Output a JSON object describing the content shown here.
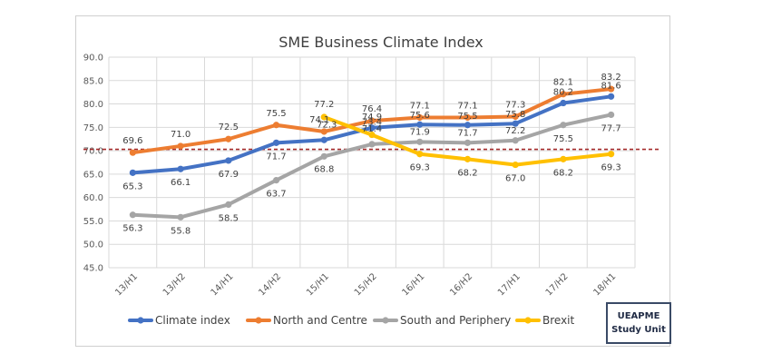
{
  "chart_data": {
    "type": "line",
    "title": "SME Business Climate Index",
    "categories": [
      "13/H1",
      "13/H2",
      "14/H1",
      "14/H2",
      "15/H1",
      "15/H2",
      "16/H1",
      "16/H2",
      "17/H1",
      "17/H2",
      "18/H1"
    ],
    "ylim": [
      45.0,
      90.0
    ],
    "yticks": [
      "45.0",
      "50.0",
      "55.0",
      "60.0",
      "65.0",
      "70.0",
      "75.0",
      "80.0",
      "85.0",
      "90.0"
    ],
    "grid": true,
    "legend_position": "bottom",
    "reference_line": {
      "value": 70.3,
      "color": "#a52a2a",
      "style": "dashed"
    },
    "series": [
      {
        "name": "Climate index",
        "color": "#4472C4",
        "values": [
          65.3,
          66.1,
          67.9,
          71.7,
          72.3,
          74.9,
          75.6,
          75.5,
          75.8,
          80.2,
          81.6
        ]
      },
      {
        "name": "North and Centre",
        "color": "#ED7D31",
        "values": [
          69.6,
          71.0,
          72.5,
          75.5,
          74.1,
          76.4,
          77.1,
          77.1,
          77.3,
          82.1,
          83.2
        ]
      },
      {
        "name": "South and Periphery",
        "color": "#A5A5A5",
        "values": [
          56.3,
          55.8,
          58.5,
          63.7,
          68.8,
          71.4,
          71.9,
          71.7,
          72.2,
          75.5,
          77.7
        ]
      },
      {
        "name": "Brexit",
        "color": "#FFC000",
        "values": [
          null,
          null,
          null,
          null,
          77.2,
          73.4,
          69.3,
          68.2,
          67.0,
          68.2,
          69.3
        ]
      }
    ],
    "data_labels": [
      [
        "65.3",
        "66.1",
        "67.9",
        "71.7",
        "72.3",
        "74.9",
        "75.6",
        "75.5",
        "75.8",
        "80.2",
        "81.6"
      ],
      [
        "69.6",
        "71.0",
        "72.5",
        "75.5",
        "74.1",
        "76.4",
        "77.1",
        "77.1",
        "77.3",
        "82.1",
        "83.2"
      ],
      [
        "56.3",
        "55.8",
        "58.5",
        "63.7",
        "68.8",
        "71.4",
        "71.9",
        "71.7",
        "72.2",
        "75.5",
        "77.7"
      ],
      [
        null,
        null,
        null,
        null,
        "77.2",
        "73.4",
        "69.3",
        "68.2",
        "67.0",
        "68.2",
        "69.3"
      ]
    ]
  },
  "stamp": {
    "line1": "UEAPME",
    "line2": "Study Unit"
  }
}
